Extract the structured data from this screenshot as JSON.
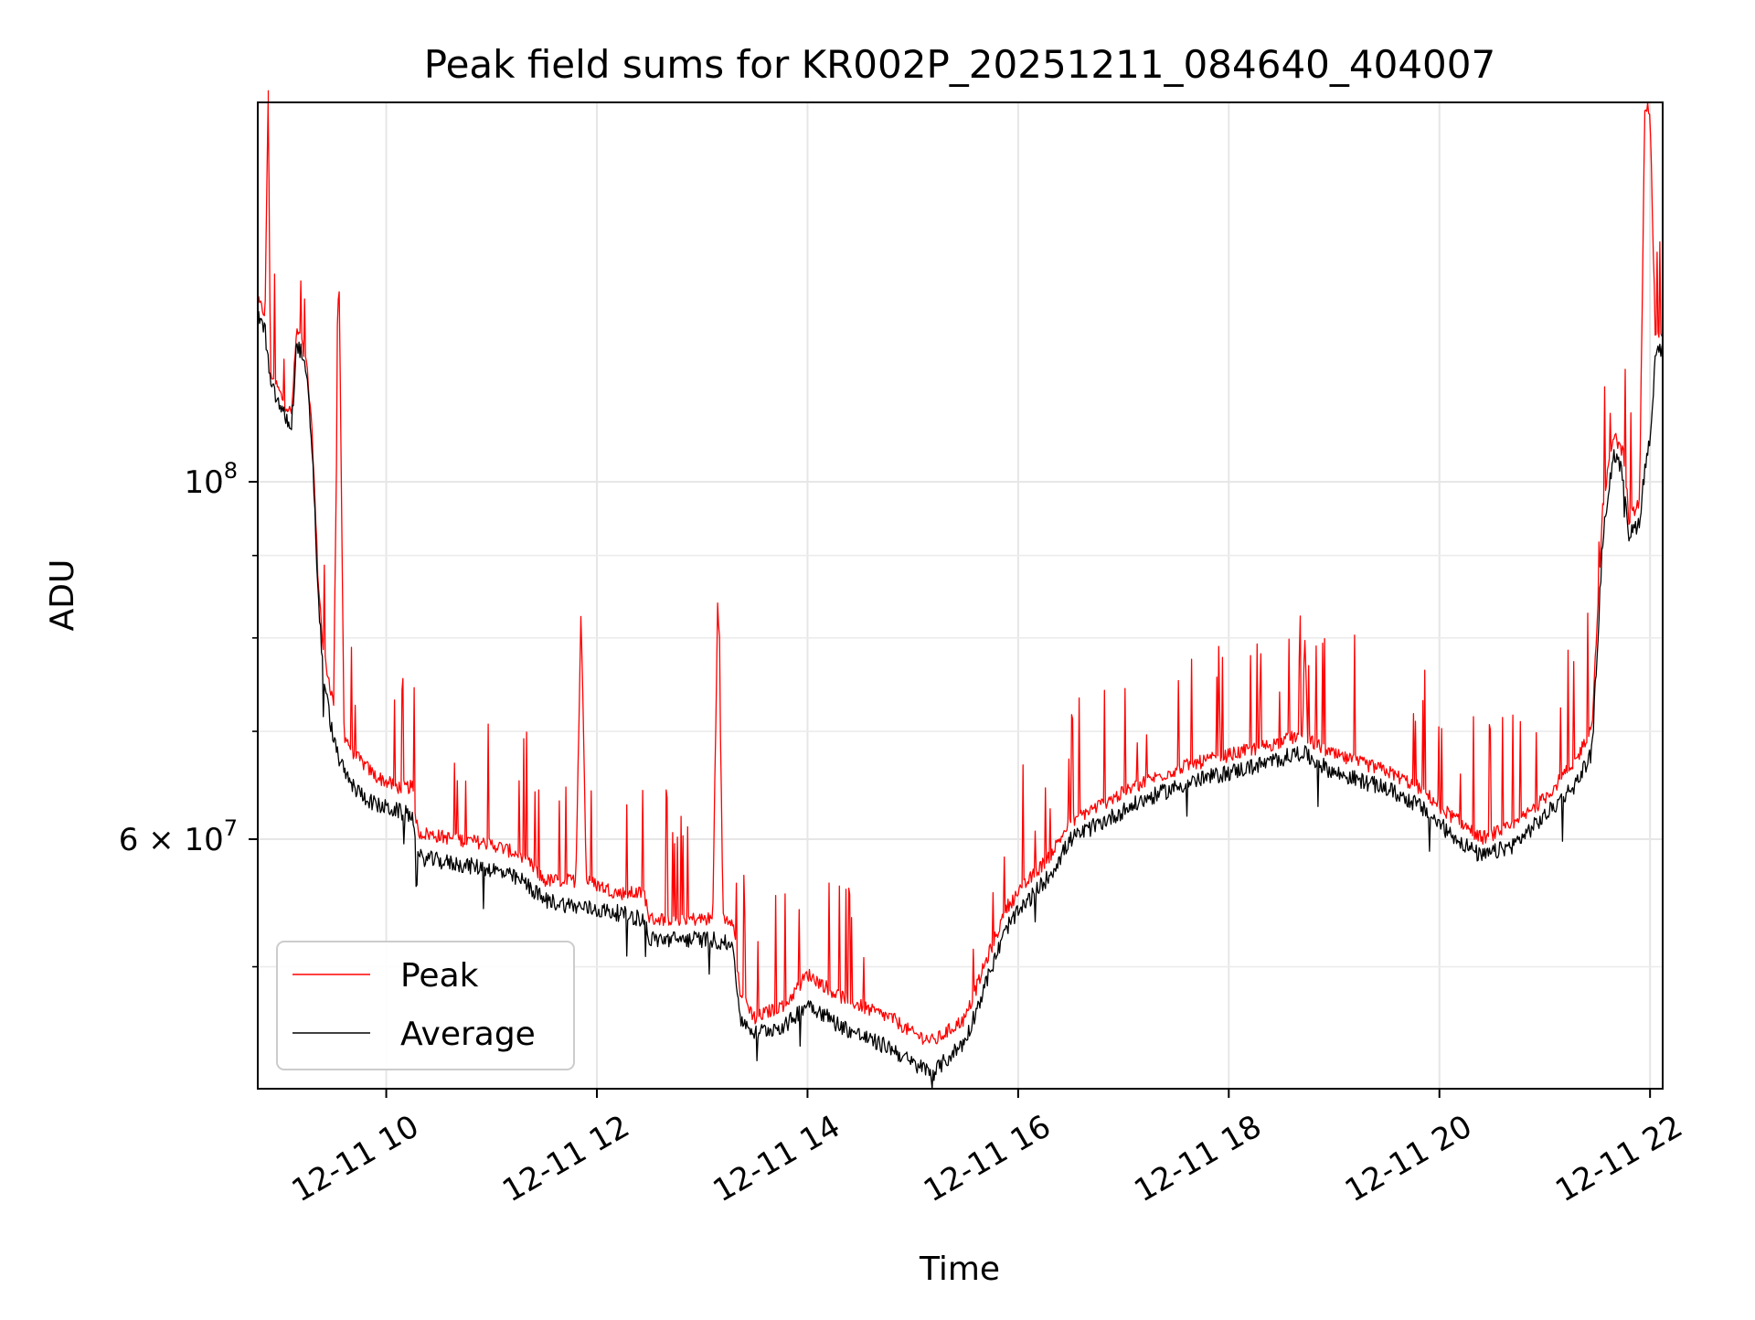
{
  "chart_data": {
    "type": "line",
    "title": "Peak field sums for KR002P_20251211_084640_404007",
    "xlabel": "Time",
    "ylabel": "ADU",
    "yscale": "log",
    "xlim_hours": [
      8.78,
      22.12
    ],
    "ylim": [
      42000000,
      172000000
    ],
    "x_ticks": [
      {
        "value": 10,
        "label": "12-11 10"
      },
      {
        "value": 12,
        "label": "12-11 12"
      },
      {
        "value": 14,
        "label": "12-11 14"
      },
      {
        "value": 16,
        "label": "12-11 16"
      },
      {
        "value": 18,
        "label": "12-11 18"
      },
      {
        "value": 20,
        "label": "12-11 20"
      },
      {
        "value": 22,
        "label": "12-11 22"
      }
    ],
    "y_major_ticks": [
      {
        "value": 60000000,
        "base": "6 × 10",
        "exp": "7"
      },
      {
        "value": 100000000,
        "base": "10",
        "exp": "8"
      }
    ],
    "y_minor_ticks": [
      50000000,
      70000000,
      80000000,
      90000000
    ],
    "grid": true,
    "legend_position": "lower-left",
    "series": [
      {
        "name": "Peak",
        "color": "#ff0000",
        "points": [
          [
            8.78,
            128000000
          ],
          [
            8.85,
            126000000
          ],
          [
            8.88,
            175000000
          ],
          [
            8.9,
            116000000
          ],
          [
            9.0,
            112000000
          ],
          [
            9.1,
            109000000
          ],
          [
            9.15,
            123000000
          ],
          [
            9.2,
            121000000
          ],
          [
            9.25,
            116000000
          ],
          [
            9.3,
            105000000
          ],
          [
            9.35,
            87000000
          ],
          [
            9.4,
            78000000
          ],
          [
            9.5,
            72000000
          ],
          [
            9.55,
            136000000
          ],
          [
            9.6,
            69000000
          ],
          [
            9.7,
            67000000
          ],
          [
            9.9,
            65000000
          ],
          [
            10.1,
            64000000
          ],
          [
            10.25,
            64000000
          ],
          [
            10.3,
            60000000
          ],
          [
            10.6,
            59500000
          ],
          [
            11.0,
            59000000
          ],
          [
            11.3,
            58000000
          ],
          [
            11.5,
            56000000
          ],
          [
            11.8,
            56000000
          ],
          [
            11.85,
            83000000
          ],
          [
            11.9,
            56000000
          ],
          [
            12.2,
            55000000
          ],
          [
            12.45,
            55000000
          ],
          [
            12.5,
            53000000
          ],
          [
            12.8,
            53000000
          ],
          [
            13.1,
            53000000
          ],
          [
            13.15,
            86000000
          ],
          [
            13.2,
            53000000
          ],
          [
            13.3,
            53000000
          ],
          [
            13.35,
            48000000
          ],
          [
            13.5,
            46000000
          ],
          [
            13.8,
            47000000
          ],
          [
            14.0,
            49000000
          ],
          [
            14.3,
            47500000
          ],
          [
            14.6,
            46500000
          ],
          [
            14.8,
            46000000
          ],
          [
            15.0,
            45000000
          ],
          [
            15.2,
            44500000
          ],
          [
            15.5,
            46000000
          ],
          [
            15.7,
            50000000
          ],
          [
            15.9,
            54000000
          ],
          [
            16.1,
            56000000
          ],
          [
            16.3,
            58000000
          ],
          [
            16.5,
            61000000
          ],
          [
            16.8,
            62500000
          ],
          [
            17.2,
            64500000
          ],
          [
            17.6,
            66000000
          ],
          [
            18.0,
            67000000
          ],
          [
            18.4,
            68000000
          ],
          [
            18.7,
            69000000
          ],
          [
            18.72,
            80000000
          ],
          [
            18.75,
            68500000
          ],
          [
            19.0,
            67000000
          ],
          [
            19.5,
            65500000
          ],
          [
            19.8,
            64000000
          ],
          [
            20.1,
            61500000
          ],
          [
            20.4,
            59500000
          ],
          [
            20.7,
            60500000
          ],
          [
            21.0,
            63000000
          ],
          [
            21.3,
            66500000
          ],
          [
            21.45,
            70000000
          ],
          [
            21.55,
            95000000
          ],
          [
            21.65,
            106000000
          ],
          [
            21.75,
            103000000
          ],
          [
            21.8,
            94000000
          ],
          [
            21.9,
            96000000
          ],
          [
            21.95,
            170000000
          ],
          [
            22.0,
            168000000
          ],
          [
            22.05,
            122000000
          ],
          [
            22.12,
            123000000
          ]
        ]
      },
      {
        "name": "Average",
        "color": "#000000",
        "points": [
          [
            8.78,
            127000000
          ],
          [
            8.85,
            124000000
          ],
          [
            8.9,
            115000000
          ],
          [
            9.0,
            111000000
          ],
          [
            9.1,
            108000000
          ],
          [
            9.15,
            122000000
          ],
          [
            9.2,
            120000000
          ],
          [
            9.25,
            115000000
          ],
          [
            9.3,
            104000000
          ],
          [
            9.35,
            86000000
          ],
          [
            9.4,
            76000000
          ],
          [
            9.5,
            69000000
          ],
          [
            9.6,
            66000000
          ],
          [
            9.7,
            64500000
          ],
          [
            9.9,
            63000000
          ],
          [
            10.1,
            62500000
          ],
          [
            10.25,
            62000000
          ],
          [
            10.3,
            58500000
          ],
          [
            10.6,
            58000000
          ],
          [
            11.0,
            57500000
          ],
          [
            11.3,
            56500000
          ],
          [
            11.5,
            55000000
          ],
          [
            11.8,
            54500000
          ],
          [
            12.2,
            54000000
          ],
          [
            12.45,
            53500000
          ],
          [
            12.5,
            52000000
          ],
          [
            12.8,
            52000000
          ],
          [
            13.1,
            52000000
          ],
          [
            13.3,
            51500000
          ],
          [
            13.35,
            46500000
          ],
          [
            13.5,
            45500000
          ],
          [
            13.8,
            46000000
          ],
          [
            14.0,
            47500000
          ],
          [
            14.3,
            46000000
          ],
          [
            14.6,
            45000000
          ],
          [
            14.8,
            44500000
          ],
          [
            15.0,
            43500000
          ],
          [
            15.2,
            43000000
          ],
          [
            15.5,
            45000000
          ],
          [
            15.7,
            49000000
          ],
          [
            15.9,
            53000000
          ],
          [
            16.1,
            55000000
          ],
          [
            16.3,
            57000000
          ],
          [
            16.5,
            60000000
          ],
          [
            16.8,
            61500000
          ],
          [
            17.2,
            63500000
          ],
          [
            17.6,
            65000000
          ],
          [
            18.0,
            66000000
          ],
          [
            18.4,
            67000000
          ],
          [
            18.7,
            68000000
          ],
          [
            18.75,
            67500000
          ],
          [
            19.0,
            66000000
          ],
          [
            19.5,
            64500000
          ],
          [
            19.8,
            63000000
          ],
          [
            20.1,
            60500000
          ],
          [
            20.4,
            58500000
          ],
          [
            20.7,
            59500000
          ],
          [
            21.0,
            62000000
          ],
          [
            21.3,
            65000000
          ],
          [
            21.45,
            68000000
          ],
          [
            21.55,
            92000000
          ],
          [
            21.65,
            104000000
          ],
          [
            21.75,
            101000000
          ],
          [
            21.8,
            92500000
          ],
          [
            21.9,
            94500000
          ],
          [
            21.95,
            102000000
          ],
          [
            22.0,
            106000000
          ],
          [
            22.05,
            120000000
          ],
          [
            22.12,
            121000000
          ]
        ]
      }
    ]
  }
}
